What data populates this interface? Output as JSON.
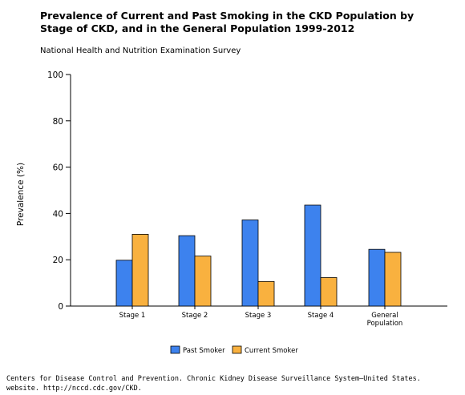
{
  "title": "Prevalence of Current and Past Smoking in the CKD Population by Stage of CKD, and in the General Population 1999-2012",
  "subtitle": "National Health and Nutrition Examination Survey",
  "footer": {
    "line1": "Centers for Disease Control and Prevention. Chronic Kidney Disease Surveillance System—United States.",
    "line2": "website. http://nccd.cdc.gov/CKD."
  },
  "chart_data": {
    "type": "bar",
    "title": "Prevalence of Current and Past Smoking in the CKD Population by Stage of CKD, and in the General Population 1999-2012",
    "subtitle": "National Health and Nutrition Examination Survey",
    "xlabel": "",
    "ylabel": "Prevalence (%)",
    "ylim": [
      0,
      100
    ],
    "yticks": [
      "0",
      "20",
      "40",
      "60",
      "80",
      "100"
    ],
    "categories": [
      "Stage 1",
      "Stage 2",
      "Stage 3",
      "Stage 4",
      "General Population"
    ],
    "series": [
      {
        "name": "Past Smoker",
        "color": "#3d82ee",
        "values": [
          19.8,
          30.4,
          37.2,
          43.6,
          24.5
        ]
      },
      {
        "name": "Current Smoker",
        "color": "#f9b13f",
        "values": [
          31.0,
          21.6,
          10.6,
          12.3,
          23.2
        ]
      }
    ],
    "grid": false,
    "legend": "bottom-center"
  }
}
